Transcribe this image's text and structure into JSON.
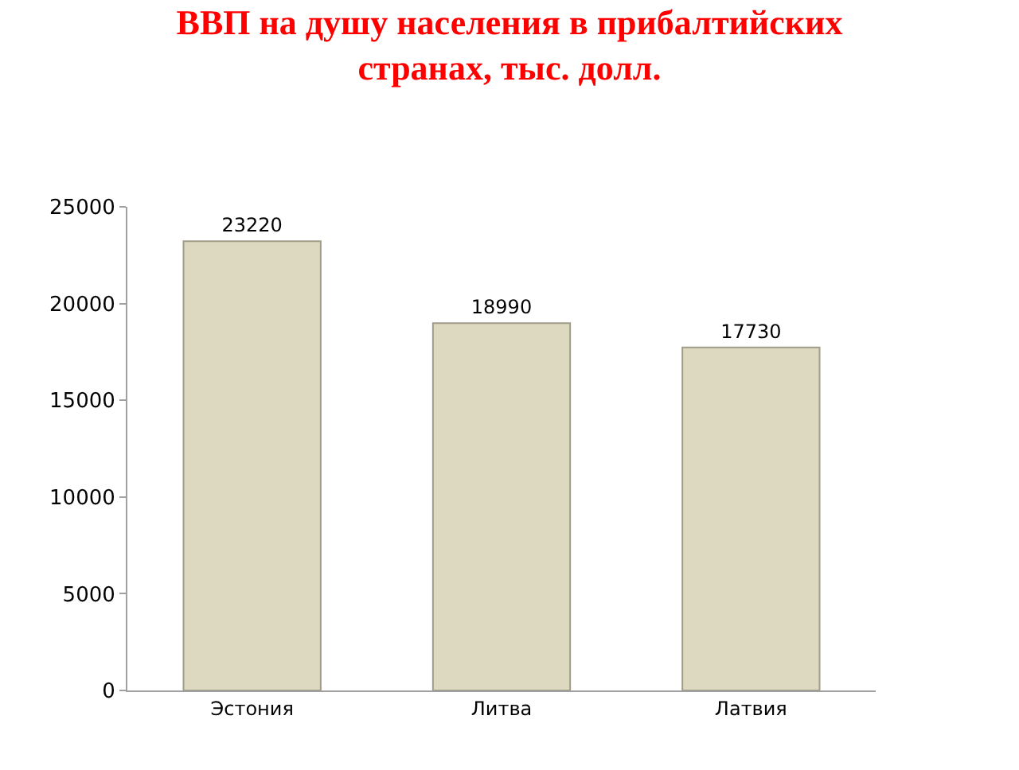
{
  "chart_data": {
    "type": "bar",
    "title": "ВВП на душу населения в прибалтийских\nстранах, тыс. долл.",
    "categories": [
      "Эстония",
      "Литва",
      "Латвия"
    ],
    "values": [
      23220,
      18990,
      17730
    ],
    "color": "#ddd8c0",
    "ylim": [
      0,
      25000
    ],
    "yticks": [
      0,
      5000,
      10000,
      15000,
      20000,
      25000
    ],
    "grid": false,
    "data_labels": true
  }
}
